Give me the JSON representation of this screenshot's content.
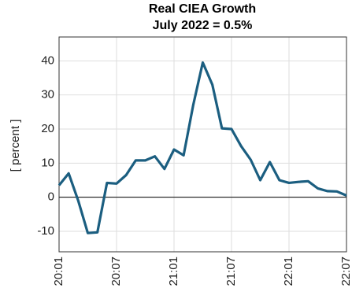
{
  "chart_data": {
    "type": "line",
    "title": "Real CIEA Growth",
    "subtitle": "July 2022 = 0.5%",
    "ylabel": "[ percent ]",
    "categories": [
      "20:01",
      null,
      null,
      null,
      null,
      null,
      "20:07",
      null,
      null,
      null,
      null,
      null,
      "21:01",
      null,
      null,
      null,
      null,
      null,
      "21:07",
      null,
      null,
      null,
      null,
      null,
      "22:01",
      null,
      null,
      null,
      null,
      null,
      "22:07"
    ],
    "series": [
      {
        "name": "Real CIEA Growth",
        "color": "#1b5e80",
        "values": [
          3.5,
          7,
          -1,
          -10.5,
          -10.3,
          4.2,
          4,
          6.5,
          10.8,
          10.8,
          12,
          8.3,
          14,
          12.3,
          27,
          39.5,
          33,
          20.2,
          20,
          15,
          11,
          5,
          10.3,
          5,
          4.2,
          4.5,
          4.7,
          2.6,
          1.8,
          1.7,
          0.5
        ]
      }
    ],
    "ylim": [
      -16,
      47
    ],
    "yticks": [
      -10,
      0,
      10,
      20,
      30,
      40
    ],
    "grid": true,
    "zero_line": true
  }
}
